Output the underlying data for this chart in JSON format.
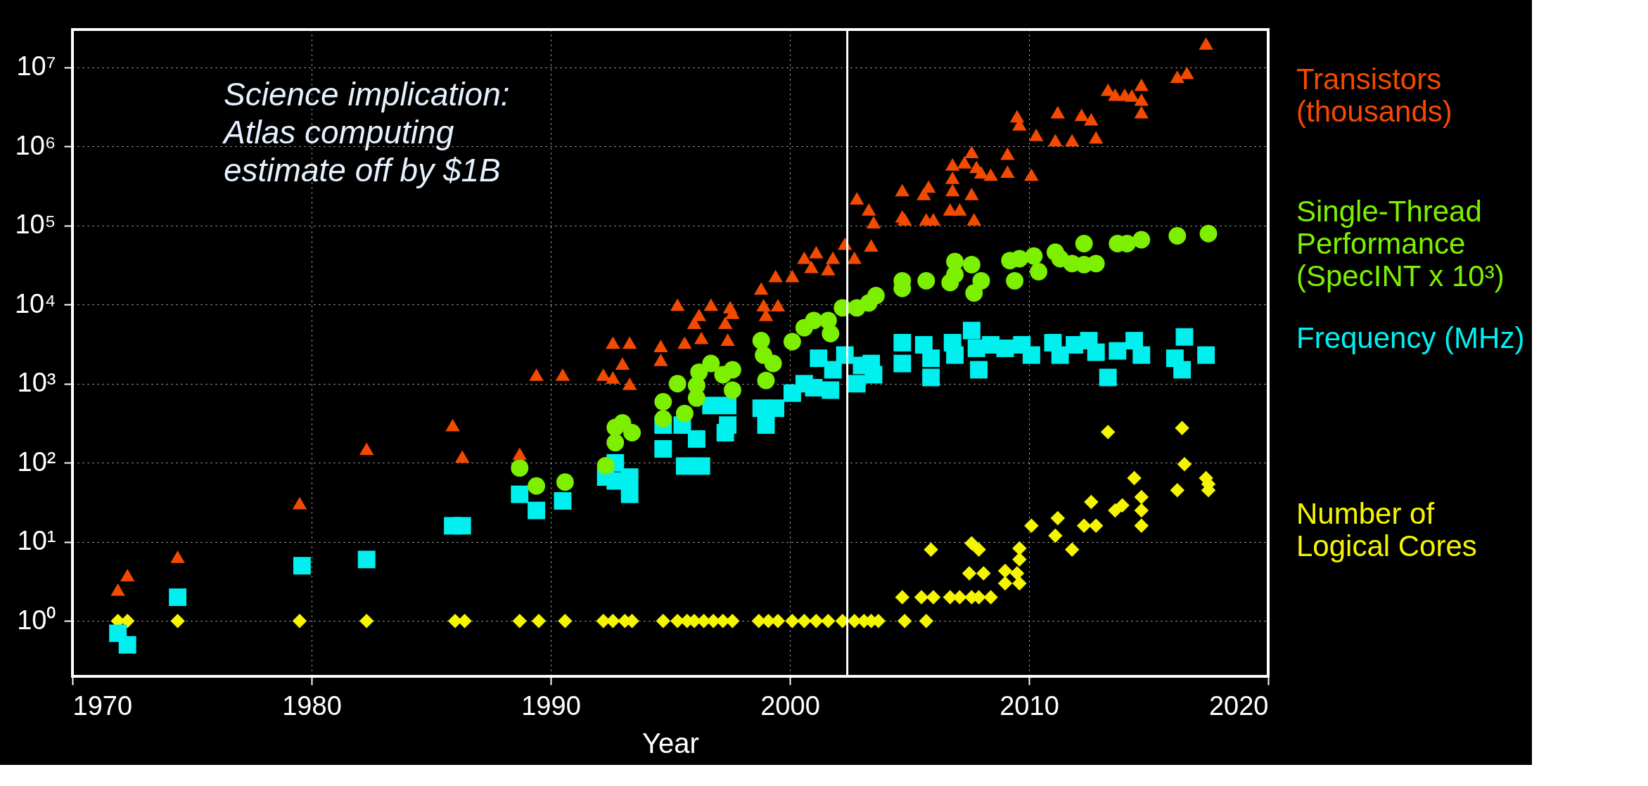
{
  "chart_data": {
    "type": "scatter",
    "xlabel": "Year",
    "xlim": [
      1970,
      2020
    ],
    "xticks": [
      1970,
      1980,
      1990,
      2000,
      2010,
      2020
    ],
    "ylim": [
      0.2,
      30000000
    ],
    "log": true,
    "yticks": [
      {
        "value": 1,
        "label": "10⁰"
      },
      {
        "value": 10,
        "label": "10¹"
      },
      {
        "value": 100,
        "label": "10²"
      },
      {
        "value": 1000,
        "label": "10³"
      },
      {
        "value": 10000,
        "label": "10⁴"
      },
      {
        "value": 100000,
        "label": "10⁵"
      },
      {
        "value": 1000000,
        "label": "10⁶"
      },
      {
        "value": 10000000,
        "label": "10⁷"
      }
    ],
    "grid": true,
    "legend": "right",
    "annotations": [
      "Science implication: Atlas computing estimate off by $1B"
    ],
    "ref_lines": [
      {
        "axis": "x",
        "value": 2002.4,
        "color": "#ffffff"
      }
    ],
    "series": [
      {
        "name": "Transistors (thousands)",
        "color": "#f24a00",
        "marker": "triangle",
        "x": [
          1971.9,
          1972.3,
          1974.4,
          1979.5,
          1982.3,
          1985.9,
          1986.3,
          1988.7,
          1989.4,
          1990.5,
          1992.2,
          1992.6,
          1992.6,
          1993.0,
          1993.3,
          1993.3,
          1994.6,
          1994.6,
          1995.3,
          1995.6,
          1996.0,
          1996.2,
          1996.3,
          1996.7,
          1997.3,
          1997.4,
          1997.5,
          1997.6,
          1998.8,
          1998.9,
          1999.0,
          1999.5,
          1999.4,
          2000.1,
          2000.6,
          2001.1,
          2000.9,
          2001.6,
          2001.8,
          2002.3,
          2002.7,
          2002.8,
          2003.3,
          2003.5,
          2003.4,
          2004.7,
          2004.7,
          2004.8,
          2005.6,
          2005.8,
          2005.7,
          2006.0,
          2006.8,
          2006.8,
          2006.8,
          2006.7,
          2007.1,
          2007.3,
          2007.6,
          2007.6,
          2007.7,
          2007.8,
          2008.0,
          2008.4,
          2009.1,
          2009.1,
          2009.5,
          2009.6,
          2010.1,
          2010.3,
          2011.2,
          2011.1,
          2011.8,
          2012.2,
          2012.6,
          2012.8,
          2013.3,
          2013.6,
          2014.0,
          2014.3,
          2014.7,
          2014.7,
          2014.7,
          2016.2,
          2016.6,
          2017.4
        ],
        "values": [
          2.5,
          3.8,
          6.5,
          31,
          150,
          300,
          120,
          130,
          1300,
          1300,
          1300,
          1200,
          3300,
          1800,
          3300,
          1000,
          3000,
          2000,
          10000,
          3300,
          5900,
          7400,
          3800,
          10000,
          5900,
          3600,
          9300,
          7900,
          16000,
          9800,
          7400,
          9800,
          23000,
          23000,
          39000,
          46000,
          30000,
          28000,
          39000,
          59000,
          39000,
          220000,
          160000,
          110000,
          56000,
          280000,
          130000,
          120000,
          250000,
          310000,
          120000,
          120000,
          590000,
          400000,
          280000,
          160000,
          160000,
          630000,
          850000,
          250000,
          120000,
          550000,
          470000,
          440000,
          810000,
          480000,
          2400000,
          1900000,
          440000,
          1400000,
          2700000,
          1200000,
          1200000,
          2500000,
          2200000,
          1300000,
          5200000,
          4500000,
          4500000,
          4400000,
          6000000,
          3900000,
          2700000,
          7600000,
          8500000,
          20000000
        ]
      },
      {
        "name": "Single-Thread Performance (SpecINT x 10³)",
        "color": "#7cf000",
        "marker": "circle",
        "x": [
          1988.7,
          1989.4,
          1990.6,
          1992.3,
          1992.7,
          1992.7,
          1993.0,
          1993.4,
          1994.7,
          1994.7,
          1995.6,
          1995.3,
          1996.1,
          1996.1,
          1996.2,
          1996.7,
          1997.2,
          1997.6,
          1997.6,
          1998.8,
          1998.9,
          1999.3,
          1999.0,
          2000.1,
          2000.6,
          2001.0,
          2001.6,
          2001.7,
          2002.2,
          2002.8,
          2003.3,
          2003.6,
          2004.7,
          2004.7,
          2005.7,
          2006.9,
          2006.9,
          2006.7,
          2007.6,
          2008.0,
          2007.7,
          2009.2,
          2009.6,
          2009.4,
          2010.2,
          2010.4,
          2011.1,
          2011.3,
          2011.8,
          2012.3,
          2012.3,
          2012.8,
          2013.7,
          2014.1,
          2014.7,
          2016.2,
          2017.5
        ],
        "values": [
          86,
          51,
          57,
          92,
          180,
          280,
          320,
          240,
          360,
          590,
          420,
          1000,
          950,
          660,
          1400,
          1800,
          1300,
          1500,
          830,
          3500,
          2300,
          1800,
          1100,
          3400,
          5100,
          6300,
          6300,
          4300,
          9100,
          9100,
          10500,
          13000,
          20000,
          16000,
          20000,
          35000,
          24000,
          19000,
          32000,
          20000,
          14000,
          36000,
          38000,
          20000,
          41000,
          26000,
          46000,
          38000,
          33000,
          59000,
          32000,
          33000,
          59000,
          59000,
          66000,
          74000,
          79000
        ]
      },
      {
        "name": "Frequency (MHz)",
        "color": "#00f0f0",
        "marker": "square",
        "x": [
          1971.9,
          1972.3,
          1974.4,
          1979.6,
          1982.3,
          1985.9,
          1986.3,
          1988.7,
          1989.4,
          1990.5,
          1992.3,
          1992.7,
          1992.7,
          1993.3,
          1993.3,
          1994.7,
          1994.7,
          1995.5,
          1995.6,
          1996.3,
          1996.1,
          1996.7,
          1997.4,
          1997.4,
          1997.3,
          1998.8,
          1999.0,
          1999.4,
          2000.1,
          2000.6,
          2001.0,
          2001.7,
          2001.2,
          2001.8,
          2002.3,
          2002.8,
          2003.0,
          2003.4,
          2003.5,
          2004.7,
          2004.7,
          2005.6,
          2005.9,
          2005.9,
          2006.8,
          2006.9,
          2007.6,
          2007.9,
          2007.8,
          2008.4,
          2009.0,
          2009.7,
          2010.1,
          2011.0,
          2011.3,
          2011.9,
          2012.5,
          2012.8,
          2013.3,
          2013.7,
          2014.4,
          2014.7,
          2016.1,
          2016.5,
          2016.4,
          2017.4
        ],
        "values": [
          0.7,
          0.5,
          2,
          5,
          6,
          16,
          16,
          40,
          25,
          33,
          66,
          100,
          59,
          66,
          40,
          150,
          300,
          300,
          91,
          91,
          200,
          530,
          530,
          300,
          240,
          490,
          300,
          490,
          760,
          1000,
          890,
          830,
          2100,
          1500,
          2300,
          1000,
          1700,
          1800,
          1300,
          3300,
          1800,
          3100,
          1200,
          2100,
          3300,
          2300,
          4700,
          1500,
          2800,
          3100,
          2800,
          3100,
          2300,
          3300,
          2300,
          3100,
          3500,
          2500,
          1200,
          2600,
          3500,
          2300,
          2100,
          3900,
          1500,
          2300
        ]
      },
      {
        "name": "Number of Logical Cores",
        "color": "#f5f500",
        "marker": "diamond",
        "x": [
          1971.9,
          1972.3,
          1974.4,
          1979.5,
          1982.3,
          1986.0,
          1986.4,
          1988.7,
          1989.5,
          1990.6,
          1992.2,
          1992.6,
          1993.1,
          1993.4,
          1994.7,
          1995.3,
          1995.7,
          1996.0,
          1996.4,
          1996.8,
          1997.2,
          1997.6,
          1998.7,
          1999.1,
          1999.5,
          2000.1,
          2000.6,
          2001.1,
          2001.6,
          2002.2,
          2002.7,
          2003.1,
          2003.4,
          2003.7,
          2004.8,
          2005.7,
          2004.7,
          2005.5,
          2006.0,
          2006.7,
          2007.1,
          2007.6,
          2007.9,
          2008.4,
          2007.5,
          2008.1,
          2009.0,
          2009.5,
          2009.0,
          2009.6,
          2009.6,
          2009.6,
          2007.6,
          2007.9,
          2005.9,
          2010.1,
          2011.1,
          2011.2,
          2011.8,
          2012.3,
          2012.8,
          2012.6,
          2013.6,
          2013.9,
          2013.3,
          2014.4,
          2014.7,
          2014.7,
          2014.7,
          2016.2,
          2016.5,
          2016.4,
          2017.4,
          2017.5,
          2017.5
        ],
        "values": [
          1,
          1,
          1,
          1,
          1,
          1,
          1,
          1,
          1,
          1,
          1,
          1,
          1,
          1,
          1,
          1,
          1,
          1,
          1,
          1,
          1,
          1,
          1,
          1,
          1,
          1,
          1,
          1,
          1,
          1,
          1,
          1,
          1,
          1,
          1,
          1,
          2,
          2,
          2,
          2,
          2,
          2,
          2,
          2,
          4,
          4,
          4.3,
          4,
          3,
          3,
          6,
          8.3,
          9.6,
          8,
          8,
          16,
          12,
          20,
          8,
          16,
          16,
          32,
          25,
          29,
          245,
          64,
          37,
          25,
          16,
          45,
          96,
          275,
          64,
          54,
          45
        ]
      }
    ]
  }
}
